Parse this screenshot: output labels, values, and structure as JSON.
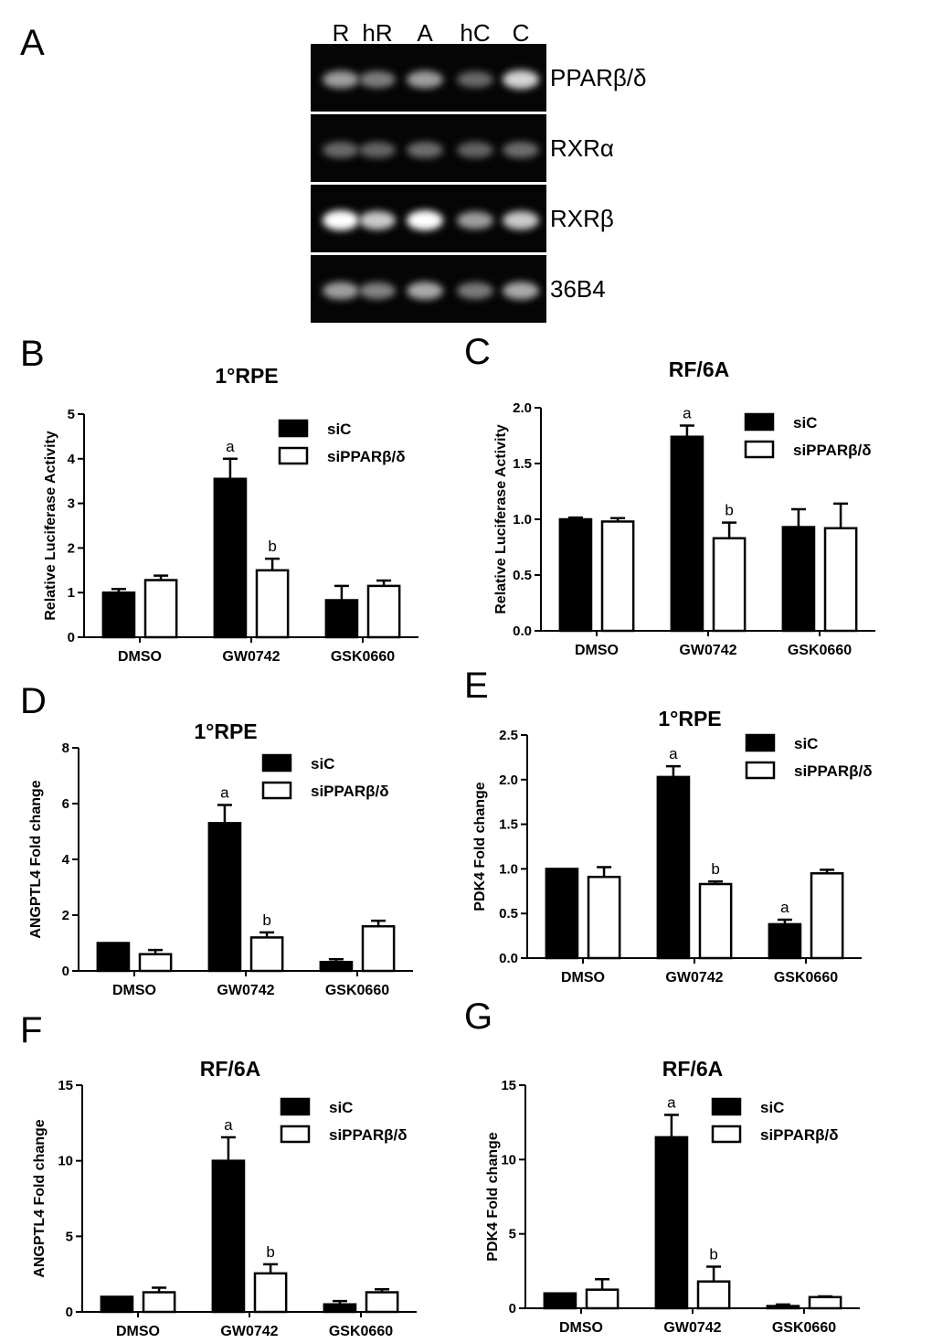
{
  "chart_data": [
    {
      "panel": "A",
      "type": "gel",
      "lanes": [
        "R",
        "hR",
        "A",
        "hC",
        "C"
      ],
      "rows": [
        {
          "label": "PPARβ/δ",
          "intensity": [
            0.55,
            0.4,
            0.55,
            0.3,
            0.8
          ]
        },
        {
          "label": "RXRα",
          "intensity": [
            0.3,
            0.28,
            0.32,
            0.28,
            0.32
          ]
        },
        {
          "label": "RXRβ",
          "intensity": [
            1.0,
            0.75,
            1.0,
            0.55,
            0.75
          ]
        },
        {
          "label": "36B4",
          "intensity": [
            0.55,
            0.42,
            0.6,
            0.38,
            0.6
          ]
        }
      ]
    },
    {
      "panel": "B",
      "type": "bar",
      "title": "1°RPE",
      "ylabel": "Relative Luciferase Activity",
      "categories": [
        "DMSO",
        "GW0742",
        "GSK0660"
      ],
      "ylim": [
        0,
        5
      ],
      "yticks": [
        0,
        1,
        2,
        3,
        4,
        5
      ],
      "series": [
        {
          "name": "siC",
          "values": [
            1.0,
            3.55,
            0.83
          ],
          "errors": [
            0.08,
            0.45,
            0.32
          ],
          "sig": [
            "",
            "a",
            ""
          ]
        },
        {
          "name": "siPPARβ/δ",
          "values": [
            1.28,
            1.5,
            1.15
          ],
          "errors": [
            0.1,
            0.26,
            0.12
          ],
          "sig": [
            "",
            "b",
            ""
          ]
        }
      ]
    },
    {
      "panel": "C",
      "type": "bar",
      "title": "RF/6A",
      "ylabel": "Relative Luciferase Activity",
      "categories": [
        "DMSO",
        "GW0742",
        "GSK0660"
      ],
      "ylim": [
        0,
        2.0
      ],
      "yticks": [
        0.0,
        0.5,
        1.0,
        1.5,
        2.0
      ],
      "series": [
        {
          "name": "siC",
          "values": [
            1.0,
            1.74,
            0.93
          ],
          "errors": [
            0.015,
            0.1,
            0.16
          ],
          "sig": [
            "",
            "a",
            ""
          ]
        },
        {
          "name": "siPPARβ/δ",
          "values": [
            0.98,
            0.83,
            0.92
          ],
          "errors": [
            0.03,
            0.14,
            0.22
          ],
          "sig": [
            "",
            "b",
            ""
          ]
        }
      ]
    },
    {
      "panel": "D",
      "type": "bar",
      "title": "1°RPE",
      "ylabel": "ANGPTL4 Fold change",
      "categories": [
        "DMSO",
        "GW0742",
        "GSK0660"
      ],
      "ylim": [
        0,
        8
      ],
      "yticks": [
        0,
        2,
        4,
        6,
        8
      ],
      "series": [
        {
          "name": "siC",
          "values": [
            1.0,
            5.3,
            0.32
          ],
          "errors": [
            0.0,
            0.65,
            0.1
          ],
          "sig": [
            "",
            "a",
            ""
          ]
        },
        {
          "name": "siPPARβ/δ",
          "values": [
            0.6,
            1.2,
            1.6
          ],
          "errors": [
            0.15,
            0.18,
            0.2
          ],
          "sig": [
            "",
            "b",
            ""
          ]
        }
      ]
    },
    {
      "panel": "E",
      "type": "bar",
      "title": "1°RPE",
      "ylabel": "PDK4 Fold change",
      "categories": [
        "DMSO",
        "GW0742",
        "GSK0660"
      ],
      "ylim": [
        0,
        2.5
      ],
      "yticks": [
        0.0,
        0.5,
        1.0,
        1.5,
        2.0,
        2.5
      ],
      "series": [
        {
          "name": "siC",
          "values": [
            1.0,
            2.03,
            0.38
          ],
          "errors": [
            0.0,
            0.12,
            0.05
          ],
          "sig": [
            "",
            "a",
            "a"
          ]
        },
        {
          "name": "siPPARβ/δ",
          "values": [
            0.91,
            0.83,
            0.95
          ],
          "errors": [
            0.11,
            0.03,
            0.04
          ],
          "sig": [
            "",
            "b",
            ""
          ]
        }
      ]
    },
    {
      "panel": "F",
      "type": "bar",
      "title": "RF/6A",
      "ylabel": "ANGPTL4 Fold change",
      "categories": [
        "DMSO",
        "GW0742",
        "GSK0660"
      ],
      "ylim": [
        0,
        15
      ],
      "yticks": [
        0,
        5,
        10,
        15
      ],
      "series": [
        {
          "name": "siC",
          "values": [
            1.0,
            10.0,
            0.5
          ],
          "errors": [
            0.0,
            1.55,
            0.22
          ],
          "sig": [
            "",
            "a",
            ""
          ]
        },
        {
          "name": "siPPARβ/δ",
          "values": [
            1.3,
            2.55,
            1.3
          ],
          "errors": [
            0.3,
            0.6,
            0.2
          ],
          "sig": [
            "",
            "b",
            ""
          ]
        }
      ]
    },
    {
      "panel": "G",
      "type": "bar",
      "title": "RF/6A",
      "ylabel": "PDK4 Fold change",
      "categories": [
        "DMSO",
        "GW0742",
        "GSK0660"
      ],
      "ylim": [
        0,
        15
      ],
      "yticks": [
        0,
        5,
        10,
        15
      ],
      "series": [
        {
          "name": "siC",
          "values": [
            1.0,
            11.5,
            0.15
          ],
          "errors": [
            0.0,
            1.5,
            0.1
          ],
          "sig": [
            "",
            "a",
            ""
          ]
        },
        {
          "name": "siPPARβ/δ",
          "values": [
            1.25,
            1.8,
            0.75
          ],
          "errors": [
            0.7,
            1.0,
            0.05
          ],
          "sig": [
            "",
            "b",
            ""
          ]
        }
      ]
    }
  ]
}
